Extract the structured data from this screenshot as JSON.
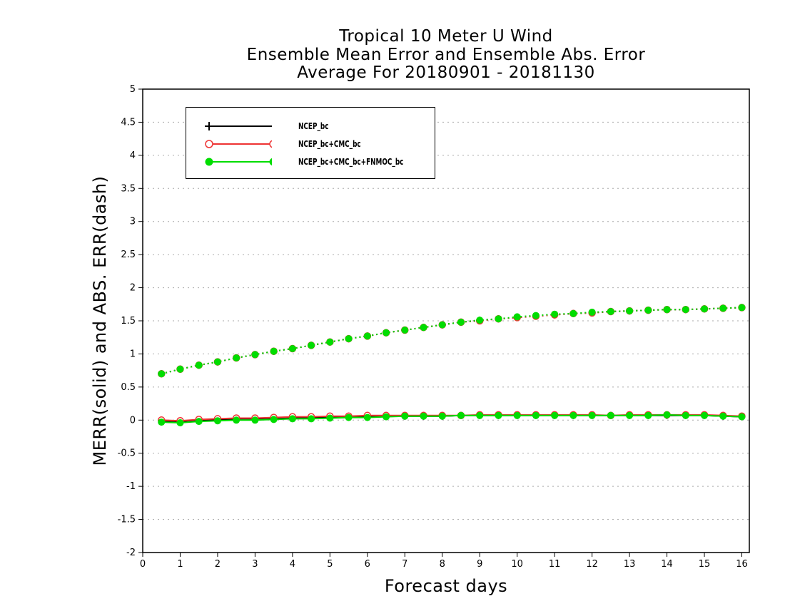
{
  "title": {
    "line1": "Tropical 10 Meter U Wind",
    "line2": "Ensemble Mean Error and Ensemble Abs. Error",
    "line3": "Average For 20180901 - 20181130"
  },
  "colors": {
    "ncep": "#000000",
    "ncep_cmc": "#ee3333",
    "ncep_cmc_fnmoc": "#00dd00",
    "grid": "#aaaaaa"
  },
  "chart_data": {
    "type": "line",
    "xlabel": "Forecast days",
    "ylabel": "MERR(solid) and ABS. ERR(dash)",
    "xlim": [
      0,
      16.2
    ],
    "ylim": [
      -2,
      5
    ],
    "xticks": [
      0,
      1,
      2,
      3,
      4,
      5,
      6,
      7,
      8,
      9,
      10,
      11,
      12,
      13,
      14,
      15,
      16
    ],
    "yticks": [
      -2,
      -1.5,
      -1,
      -0.5,
      0,
      0.5,
      1,
      1.5,
      2,
      2.5,
      3,
      3.5,
      4,
      4.5,
      5
    ],
    "grid": "horizontal dotted",
    "legend_position": "top-left",
    "x": [
      0.5,
      1,
      1.5,
      2,
      2.5,
      3,
      3.5,
      4,
      4.5,
      5,
      5.5,
      6,
      6.5,
      7,
      7.5,
      8,
      8.5,
      9,
      9.5,
      10,
      10.5,
      11,
      11.5,
      12,
      12.5,
      13,
      13.5,
      14,
      14.5,
      15,
      15.5,
      16
    ],
    "series": [
      {
        "name": "NCEP_bc",
        "marker": "plus",
        "color": "#000000",
        "mean_error": [
          -0.01,
          -0.02,
          0.0,
          0.0,
          0.02,
          0.02,
          0.03,
          0.04,
          0.04,
          0.05,
          0.05,
          0.06,
          0.06,
          0.06,
          0.06,
          0.06,
          0.07,
          0.07,
          0.07,
          0.07,
          0.07,
          0.07,
          0.07,
          0.07,
          0.07,
          0.07,
          0.07,
          0.07,
          0.07,
          0.07,
          0.06,
          0.05
        ],
        "abs_error": [
          0.7,
          0.77,
          0.83,
          0.88,
          0.94,
          0.99,
          1.04,
          1.08,
          1.13,
          1.18,
          1.23,
          1.27,
          1.32,
          1.36,
          1.4,
          1.44,
          1.48,
          1.51,
          1.53,
          1.55,
          1.57,
          1.59,
          1.61,
          1.62,
          1.64,
          1.65,
          1.66,
          1.67,
          1.67,
          1.68,
          1.69,
          1.7
        ]
      },
      {
        "name": "NCEP_bc+CMC_bc",
        "marker": "open-circle",
        "color": "#ee3333",
        "mean_error": [
          0.0,
          -0.01,
          0.01,
          0.02,
          0.03,
          0.03,
          0.04,
          0.05,
          0.05,
          0.06,
          0.06,
          0.07,
          0.07,
          0.07,
          0.07,
          0.07,
          0.07,
          0.08,
          0.08,
          0.08,
          0.08,
          0.08,
          0.08,
          0.08,
          0.07,
          0.08,
          0.08,
          0.08,
          0.08,
          0.08,
          0.07,
          0.06
        ],
        "abs_error": [
          0.7,
          0.77,
          0.83,
          0.88,
          0.94,
          0.99,
          1.04,
          1.08,
          1.13,
          1.18,
          1.23,
          1.27,
          1.32,
          1.36,
          1.4,
          1.44,
          1.48,
          1.5,
          1.53,
          1.55,
          1.57,
          1.59,
          1.61,
          1.62,
          1.64,
          1.65,
          1.66,
          1.67,
          1.67,
          1.68,
          1.69,
          1.7
        ]
      },
      {
        "name": "NCEP_bc+CMC_bc+FNMOC_bc",
        "marker": "filled-circle",
        "color": "#00dd00",
        "mean_error": [
          -0.03,
          -0.04,
          -0.02,
          -0.01,
          0.0,
          0.0,
          0.01,
          0.02,
          0.02,
          0.03,
          0.04,
          0.04,
          0.05,
          0.06,
          0.06,
          0.06,
          0.07,
          0.07,
          0.07,
          0.07,
          0.07,
          0.07,
          0.07,
          0.07,
          0.07,
          0.07,
          0.07,
          0.08,
          0.07,
          0.07,
          0.06,
          0.05
        ],
        "abs_error": [
          0.7,
          0.77,
          0.83,
          0.88,
          0.94,
          0.99,
          1.04,
          1.08,
          1.13,
          1.18,
          1.23,
          1.27,
          1.32,
          1.36,
          1.4,
          1.44,
          1.48,
          1.51,
          1.53,
          1.56,
          1.58,
          1.6,
          1.61,
          1.63,
          1.64,
          1.65,
          1.66,
          1.67,
          1.67,
          1.68,
          1.69,
          1.7
        ]
      }
    ]
  }
}
